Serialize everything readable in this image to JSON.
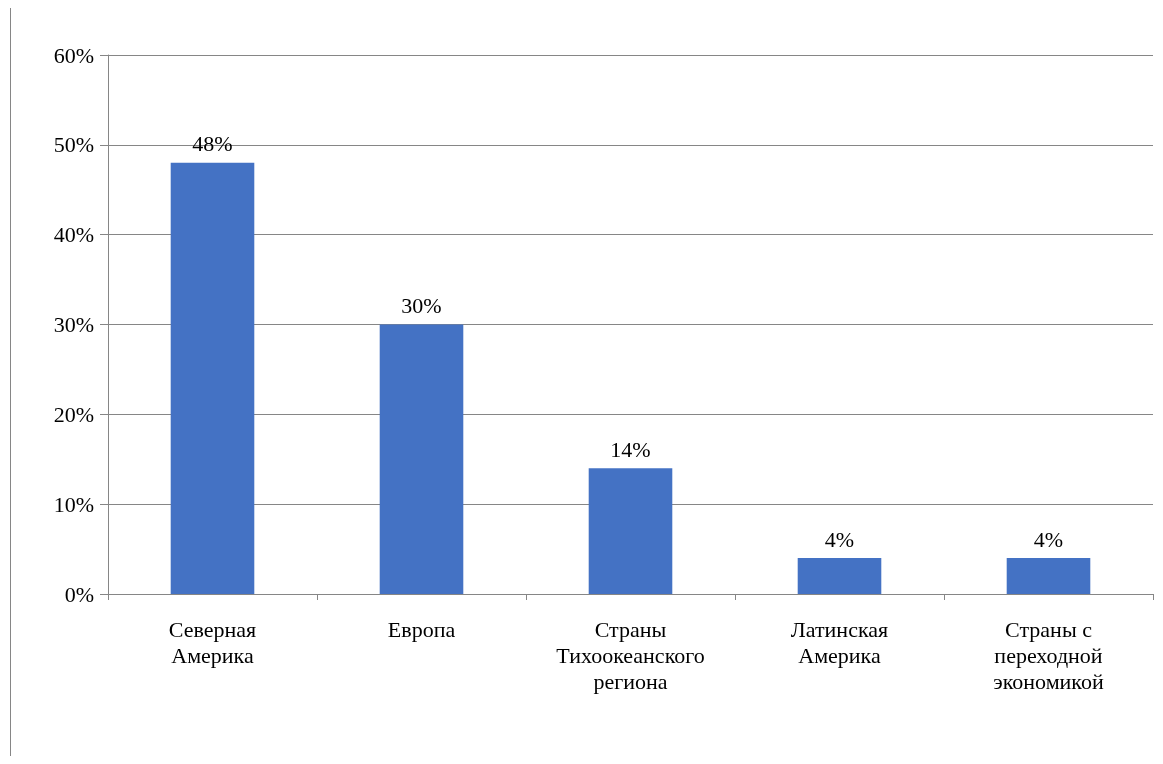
{
  "chart_data": {
    "type": "bar",
    "categories": [
      "Северная Америка",
      "Европа",
      "Страны Тихоокеанского региона",
      "Латинская Америка",
      "Страны с переходной экономикой"
    ],
    "values": [
      48,
      30,
      14,
      4,
      4
    ],
    "value_labels": [
      "48%",
      "30%",
      "14%",
      "4%",
      "4%"
    ],
    "color": "#4472c4",
    "ylim": [
      0,
      60
    ],
    "yticks": [
      {
        "value": 0,
        "label": "0%"
      },
      {
        "value": 10,
        "label": "10%"
      },
      {
        "value": 20,
        "label": "20%"
      },
      {
        "value": 30,
        "label": "30%"
      },
      {
        "value": 40,
        "label": "40%"
      },
      {
        "value": 50,
        "label": "50%"
      },
      {
        "value": 60,
        "label": "60%"
      }
    ],
    "grid": "y"
  }
}
